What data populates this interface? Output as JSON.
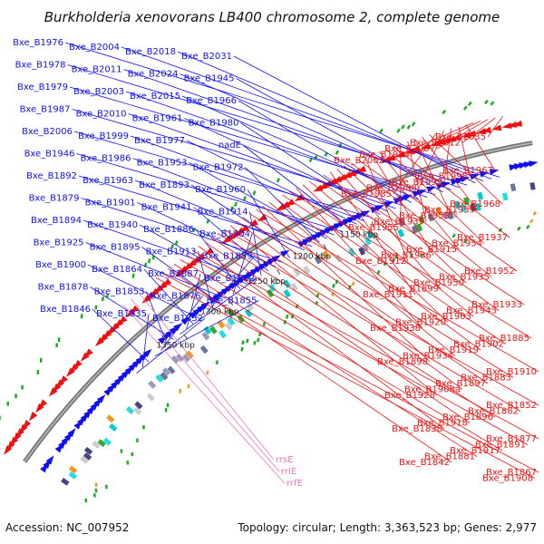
{
  "title": "Burkholderia xenovorans LB400 chromosome 2, complete genome",
  "footer": {
    "accession": "Accession: NC_007952",
    "summary": "Topology: circular; Length: 3,363,523 bp; Genes: 2,977"
  },
  "scale_labels": [
    "1150 kbp",
    "1200 kbp",
    "1250 kbp",
    "1300 kbp",
    "1350 kbp"
  ],
  "colors": {
    "plus_strand": "#1010ee",
    "minus_strand": "#ee1111",
    "rna": "#ee77bb",
    "backbone": "#777777"
  },
  "genes_plus_strand": [
    "Bxe_B1976",
    "Bxe_B2004",
    "Bxe_B2018",
    "Bxe_B2031",
    "Bxe_B1978",
    "Bxe_B2011",
    "Bxe_B2024",
    "Bxe_B1945",
    "Bxe_B1979",
    "Bxe_B2003",
    "Bxe_B2015",
    "Bxe_B1966",
    "Bxe_B1987",
    "Bxe_B2010",
    "Bxe_B1961",
    "Bxe_B1980",
    "Bxe_B2006",
    "Bxe_B1999",
    "Bxe_B1977",
    "nadE",
    "Bxe_B1946",
    "Bxe_B1986",
    "Bxe_B1953",
    "Bxe_B1972",
    "Bxe_B1892",
    "Bxe_B1963",
    "Bxe_B1893",
    "Bxe_B1960",
    "Bxe_B1879",
    "Bxe_B1901",
    "Bxe_B1941",
    "Bxe_B1914",
    "Bxe_B1894",
    "Bxe_B1940",
    "Bxe_B1886",
    "Bxe_B1904",
    "Bxe_B1925",
    "Bxe_B1895",
    "Bxe_B1913",
    "Bxe_B1859",
    "Bxe_B1900",
    "Bxe_B1864",
    "Bxe_B1887",
    "Bxe_B1862",
    "Bxe_B1878",
    "Bxe_B1853",
    "Bxe_B1876",
    "Bxe_B1855",
    "Bxe_B1846",
    "Bxe_B1835",
    "Bxe_B1832"
  ],
  "genes_minus_strand": [
    "Bxe_B2035",
    "Bxe_B2012",
    "Bxe_B2007",
    "Bxe_B1984",
    "Bxe_B2002",
    "Bxe_B1967",
    "Bxe_B1998",
    "Bxe_B1993",
    "Bxe_B1988",
    "Bxe_B1985",
    "Bxe_B1968",
    "Bxe_B1959",
    "Bxe_B1958",
    "Bxe_B1939",
    "Bxe_B1955",
    "Bxe_B1937",
    "Bxe_B1954",
    "Bxe_B1915",
    "Bxe_B1936",
    "Bxe_B1912",
    "Bxe_B1952",
    "Bxe_B1935",
    "Bxe_B1950",
    "Bxe_B1899",
    "Bxe_B1911",
    "Bxe_B1933",
    "Bxe_B1943",
    "Bxe_B1903",
    "Bxe_B1920",
    "Bxe_B1938",
    "Bxe_B1885",
    "Bxe_B1902",
    "Bxe_B1919",
    "Bxe_B1934",
    "Bxe_B1898",
    "Bxe_B1910",
    "Bxe_B1883",
    "Bxe_B1897",
    "Bxe_B1908a",
    "Bxe_B1928",
    "Bxe_B1852",
    "Bxe_B1882",
    "Bxe_B1896",
    "Bxe_B1918",
    "Bxe_B1838",
    "Bxe_B1877",
    "Bxe_B1891",
    "Bxe_B1917",
    "Bxe_B1881",
    "Bxe_B1842",
    "Bxe_B1867",
    "Bxe_B1908"
  ],
  "rna_genes": [
    "rrsE",
    "rrlE",
    "rrfE"
  ]
}
